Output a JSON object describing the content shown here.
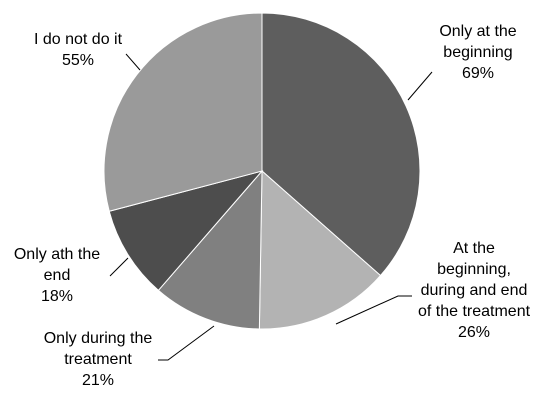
{
  "chart_data": {
    "type": "pie",
    "title": "",
    "categories": [
      "Only at the beginning",
      "At the beginning, during and end of the treatment",
      "Only during the treatment",
      "Only ath the end",
      "I do not do it"
    ],
    "values": [
      69,
      26,
      21,
      18,
      55
    ],
    "value_labels": [
      "69%",
      "26%",
      "21%",
      "18%",
      "55%"
    ],
    "label_lines": [
      [
        "Only at the",
        "beginning"
      ],
      [
        "At the",
        "beginning,",
        "during and end",
        "of the treatment"
      ],
      [
        "Only during the",
        "treatment"
      ],
      [
        "Only ath the",
        "end"
      ],
      [
        "I do not do it"
      ]
    ],
    "colors": [
      "#5e5e5e",
      "#b3b3b3",
      "#808080",
      "#4d4d4d",
      "#9a9a9a"
    ],
    "legend": "none"
  }
}
